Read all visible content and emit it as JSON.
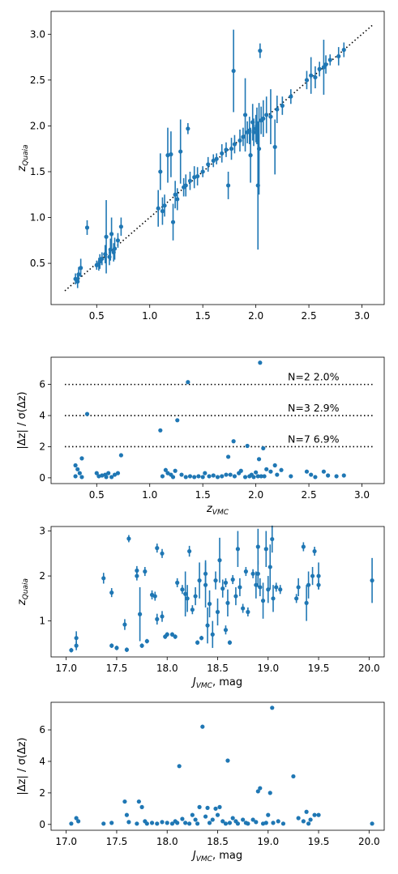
{
  "chart_data": [
    {
      "type": "scatter",
      "xlabel": "",
      "ylabel": "z_Quaia",
      "xlim": [
        0.07,
        3.21
      ],
      "ylim": [
        0.05,
        3.25
      ],
      "xticks": [
        "0.5",
        "1.0",
        "1.5",
        "2.0",
        "2.5",
        "3.0"
      ],
      "yticks": [
        "0.5",
        "1.0",
        "1.5",
        "2.0",
        "2.5",
        "3.0"
      ],
      "reference_line": {
        "style": "dotted",
        "color": "#000000",
        "x": [
          0.2,
          3.1
        ],
        "y": [
          0.2,
          3.1
        ]
      },
      "color": "#1f77b4",
      "points": [
        [
          0.3,
          0.33,
          0.06
        ],
        [
          0.32,
          0.3,
          0.07
        ],
        [
          0.33,
          0.38,
          0.08
        ],
        [
          0.35,
          0.45,
          0.1
        ],
        [
          0.41,
          0.89,
          0.08
        ],
        [
          0.5,
          0.48,
          0.05
        ],
        [
          0.52,
          0.49,
          0.07
        ],
        [
          0.53,
          0.52,
          0.08
        ],
        [
          0.55,
          0.55,
          0.07
        ],
        [
          0.58,
          0.6,
          0.1
        ],
        [
          0.59,
          0.79,
          0.4
        ],
        [
          0.62,
          0.57,
          0.09
        ],
        [
          0.63,
          0.65,
          0.12
        ],
        [
          0.64,
          0.82,
          0.18
        ],
        [
          0.66,
          0.62,
          0.1
        ],
        [
          0.67,
          0.66,
          0.12
        ],
        [
          0.7,
          0.75,
          0.08
        ],
        [
          0.73,
          0.9,
          0.1
        ],
        [
          1.08,
          1.1,
          0.2
        ],
        [
          1.1,
          1.5,
          0.2
        ],
        [
          1.12,
          1.07,
          0.15
        ],
        [
          1.14,
          1.13,
          0.12
        ],
        [
          1.17,
          1.68,
          0.3
        ],
        [
          1.2,
          1.69,
          0.25
        ],
        [
          1.22,
          0.95,
          0.2
        ],
        [
          1.24,
          1.25,
          0.15
        ],
        [
          1.26,
          1.2,
          0.12
        ],
        [
          1.29,
          1.72,
          0.35
        ],
        [
          1.32,
          1.33,
          0.1
        ],
        [
          1.34,
          1.35,
          0.12
        ],
        [
          1.36,
          1.97,
          0.06
        ],
        [
          1.38,
          1.4,
          0.1
        ],
        [
          1.42,
          1.44,
          0.12
        ],
        [
          1.45,
          1.45,
          0.1
        ],
        [
          1.5,
          1.5,
          0.06
        ],
        [
          1.55,
          1.58,
          0.08
        ],
        [
          1.6,
          1.62,
          0.07
        ],
        [
          1.63,
          1.64,
          0.06
        ],
        [
          1.68,
          1.7,
          0.1
        ],
        [
          1.72,
          1.74,
          0.08
        ],
        [
          1.74,
          1.35,
          0.15
        ],
        [
          1.77,
          1.75,
          0.12
        ],
        [
          1.79,
          2.6,
          0.45
        ],
        [
          1.8,
          1.8,
          0.1
        ],
        [
          1.85,
          1.84,
          0.12
        ],
        [
          1.88,
          1.88,
          0.1
        ],
        [
          1.9,
          2.12,
          0.4
        ],
        [
          1.92,
          1.93,
          0.12
        ],
        [
          1.94,
          1.95,
          0.15
        ],
        [
          1.95,
          1.68,
          0.3
        ],
        [
          1.97,
          2.04,
          0.2
        ],
        [
          1.98,
          1.93,
          0.15
        ],
        [
          2.0,
          1.97,
          0.15
        ],
        [
          2.01,
          2.0,
          0.2
        ],
        [
          2.02,
          1.35,
          0.7
        ],
        [
          2.03,
          1.75,
          0.5
        ],
        [
          2.04,
          2.82,
          0.08
        ],
        [
          2.05,
          2.06,
          0.15
        ],
        [
          2.07,
          2.08,
          0.2
        ],
        [
          2.1,
          2.12,
          0.2
        ],
        [
          2.14,
          2.1,
          0.3
        ],
        [
          2.18,
          1.77,
          0.3
        ],
        [
          2.2,
          2.18,
          0.15
        ],
        [
          2.25,
          2.22,
          0.1
        ],
        [
          2.33,
          2.32,
          0.08
        ],
        [
          2.48,
          2.5,
          0.1
        ],
        [
          2.52,
          2.55,
          0.2
        ],
        [
          2.56,
          2.53,
          0.12
        ],
        [
          2.6,
          2.62,
          0.08
        ],
        [
          2.64,
          2.64,
          0.3
        ],
        [
          2.66,
          2.67,
          0.1
        ],
        [
          2.7,
          2.72,
          0.06
        ],
        [
          2.78,
          2.76,
          0.1
        ],
        [
          2.83,
          2.83,
          0.08
        ]
      ]
    },
    {
      "type": "scatter",
      "xlabel": "z_VMC",
      "ylabel": "|Δz| / σ(Δz)",
      "xlim": [
        0.07,
        3.21
      ],
      "ylim": [
        -0.37,
        7.75
      ],
      "xticks": [
        "0.5",
        "1.0",
        "1.5",
        "2.0",
        "2.5",
        "3.0"
      ],
      "yticks": [
        "0",
        "2",
        "4",
        "6"
      ],
      "thresholds": [
        {
          "y": 6,
          "label": "N=2  2.0%"
        },
        {
          "y": 4,
          "label": "N=3  2.9%"
        },
        {
          "y": 2,
          "label": "N=7  6.9%"
        }
      ],
      "color": "#1f77b4",
      "points": [
        [
          0.3,
          0.1
        ],
        [
          0.3,
          0.8
        ],
        [
          0.32,
          0.55
        ],
        [
          0.34,
          0.3
        ],
        [
          0.36,
          1.25
        ],
        [
          0.36,
          0.05
        ],
        [
          0.41,
          4.1
        ],
        [
          0.5,
          0.3
        ],
        [
          0.52,
          0.1
        ],
        [
          0.55,
          0.15
        ],
        [
          0.58,
          0.2
        ],
        [
          0.59,
          0.05
        ],
        [
          0.61,
          0.3
        ],
        [
          0.64,
          0.05
        ],
        [
          0.67,
          0.2
        ],
        [
          0.7,
          0.3
        ],
        [
          0.73,
          1.45
        ],
        [
          1.1,
          3.05
        ],
        [
          1.12,
          0.1
        ],
        [
          1.15,
          0.5
        ],
        [
          1.17,
          0.3
        ],
        [
          1.2,
          0.2
        ],
        [
          1.22,
          0.05
        ],
        [
          1.24,
          0.45
        ],
        [
          1.26,
          3.7
        ],
        [
          1.3,
          0.2
        ],
        [
          1.34,
          0.05
        ],
        [
          1.36,
          6.15
        ],
        [
          1.38,
          0.1
        ],
        [
          1.42,
          0.05
        ],
        [
          1.46,
          0.1
        ],
        [
          1.5,
          0.05
        ],
        [
          1.52,
          0.3
        ],
        [
          1.56,
          0.1
        ],
        [
          1.6,
          0.15
        ],
        [
          1.64,
          0.05
        ],
        [
          1.68,
          0.1
        ],
        [
          1.72,
          0.2
        ],
        [
          1.74,
          1.35
        ],
        [
          1.76,
          0.2
        ],
        [
          1.79,
          2.35
        ],
        [
          1.8,
          0.1
        ],
        [
          1.84,
          0.3
        ],
        [
          1.86,
          0.45
        ],
        [
          1.9,
          0.05
        ],
        [
          1.92,
          2.05
        ],
        [
          1.94,
          0.1
        ],
        [
          1.96,
          0.2
        ],
        [
          1.98,
          0.05
        ],
        [
          2.0,
          0.35
        ],
        [
          2.02,
          0.1
        ],
        [
          2.03,
          1.2
        ],
        [
          2.04,
          7.4
        ],
        [
          2.05,
          0.1
        ],
        [
          2.07,
          1.9
        ],
        [
          2.08,
          0.1
        ],
        [
          2.1,
          0.55
        ],
        [
          2.14,
          0.4
        ],
        [
          2.18,
          0.8
        ],
        [
          2.2,
          0.2
        ],
        [
          2.24,
          0.5
        ],
        [
          2.33,
          0.1
        ],
        [
          2.48,
          0.4
        ],
        [
          2.52,
          0.2
        ],
        [
          2.56,
          0.05
        ],
        [
          2.64,
          0.4
        ],
        [
          2.68,
          0.15
        ],
        [
          2.76,
          0.1
        ],
        [
          2.83,
          0.15
        ]
      ]
    },
    {
      "type": "scatter",
      "xlabel": "J_VMC, mag",
      "ylabel": "z_Quaia",
      "xlim": [
        16.85,
        20.15
      ],
      "ylim": [
        0.2,
        3.1
      ],
      "xticks": [
        "17.0",
        "17.5",
        "18.0",
        "18.5",
        "19.0",
        "19.5",
        "20.0"
      ],
      "yticks": [
        "1",
        "2",
        "3"
      ],
      "color": "#1f77b4",
      "points": [
        [
          17.05,
          0.35,
          0.05
        ],
        [
          17.1,
          0.45,
          0.1
        ],
        [
          17.1,
          0.62,
          0.15
        ],
        [
          17.37,
          1.95,
          0.12
        ],
        [
          17.45,
          0.45,
          0.05
        ],
        [
          17.45,
          1.63,
          0.1
        ],
        [
          17.5,
          0.4,
          0.05
        ],
        [
          17.58,
          0.92,
          0.12
        ],
        [
          17.6,
          0.36,
          0.05
        ],
        [
          17.62,
          2.83,
          0.08
        ],
        [
          17.7,
          2.0,
          0.1
        ],
        [
          17.7,
          2.12,
          0.1
        ],
        [
          17.73,
          1.15,
          0.6
        ],
        [
          17.75,
          0.45,
          0.05
        ],
        [
          17.78,
          2.1,
          0.1
        ],
        [
          17.8,
          0.55,
          0.05
        ],
        [
          17.85,
          1.58,
          0.1
        ],
        [
          17.88,
          1.55,
          0.1
        ],
        [
          17.9,
          1.04,
          0.12
        ],
        [
          17.9,
          2.62,
          0.1
        ],
        [
          17.95,
          1.1,
          0.12
        ],
        [
          17.95,
          2.5,
          0.1
        ],
        [
          17.98,
          0.65,
          0.05
        ],
        [
          18.0,
          0.7,
          0.05
        ],
        [
          18.05,
          0.7,
          0.05
        ],
        [
          18.08,
          0.65,
          0.05
        ],
        [
          18.1,
          1.85,
          0.1
        ],
        [
          18.15,
          1.7,
          0.1
        ],
        [
          18.18,
          1.6,
          0.5
        ],
        [
          18.2,
          1.5,
          0.3
        ],
        [
          18.22,
          2.55,
          0.12
        ],
        [
          18.25,
          1.25,
          0.1
        ],
        [
          18.28,
          1.55,
          0.2
        ],
        [
          18.3,
          0.52,
          0.05
        ],
        [
          18.32,
          1.9,
          0.4
        ],
        [
          18.34,
          0.62,
          0.05
        ],
        [
          18.38,
          1.8,
          0.5
        ],
        [
          18.38,
          2.05,
          0.3
        ],
        [
          18.4,
          0.9,
          0.4
        ],
        [
          18.42,
          1.38,
          0.3
        ],
        [
          18.45,
          0.7,
          0.3
        ],
        [
          18.48,
          1.9,
          0.2
        ],
        [
          18.5,
          1.2,
          0.3
        ],
        [
          18.52,
          2.35,
          0.5
        ],
        [
          18.55,
          1.72,
          0.2
        ],
        [
          18.58,
          0.8,
          0.1
        ],
        [
          18.58,
          1.85,
          0.1
        ],
        [
          18.6,
          1.4,
          0.3
        ],
        [
          18.62,
          0.52,
          0.05
        ],
        [
          18.65,
          1.92,
          0.1
        ],
        [
          18.68,
          1.55,
          0.2
        ],
        [
          18.7,
          2.6,
          0.4
        ],
        [
          18.72,
          1.75,
          0.2
        ],
        [
          18.75,
          1.28,
          0.1
        ],
        [
          18.78,
          2.1,
          0.1
        ],
        [
          18.8,
          1.2,
          0.1
        ],
        [
          18.85,
          2.05,
          0.1
        ],
        [
          18.88,
          1.8,
          0.3
        ],
        [
          18.9,
          2.65,
          0.4
        ],
        [
          18.9,
          2.05,
          0.3
        ],
        [
          18.92,
          1.75,
          0.2
        ],
        [
          18.95,
          1.45,
          0.4
        ],
        [
          18.98,
          2.6,
          0.4
        ],
        [
          19.0,
          1.7,
          0.3
        ],
        [
          19.02,
          2.2,
          0.5
        ],
        [
          19.04,
          2.82,
          0.3
        ],
        [
          19.05,
          1.5,
          0.3
        ],
        [
          19.08,
          1.75,
          0.1
        ],
        [
          19.12,
          1.7,
          0.1
        ],
        [
          19.28,
          1.5,
          0.1
        ],
        [
          19.3,
          1.75,
          0.2
        ],
        [
          19.35,
          2.65,
          0.1
        ],
        [
          19.38,
          1.4,
          0.4
        ],
        [
          19.4,
          1.8,
          0.3
        ],
        [
          19.44,
          2.0,
          0.2
        ],
        [
          19.46,
          2.55,
          0.1
        ],
        [
          19.5,
          1.8,
          0.1
        ],
        [
          19.5,
          2.0,
          0.3
        ],
        [
          20.03,
          1.9,
          0.5
        ]
      ]
    },
    {
      "type": "scatter",
      "xlabel": "J_VMC, mag",
      "ylabel": "|Δz| / σ(Δz)",
      "xlim": [
        16.85,
        20.15
      ],
      "ylim": [
        -0.37,
        7.75
      ],
      "xticks": [
        "17.0",
        "17.5",
        "18.0",
        "18.5",
        "19.0",
        "19.5",
        "20.0"
      ],
      "yticks": [
        "0",
        "2",
        "4",
        "6"
      ],
      "color": "#1f77b4",
      "points": [
        [
          17.05,
          0.05
        ],
        [
          17.1,
          0.4
        ],
        [
          17.12,
          0.2
        ],
        [
          17.37,
          0.05
        ],
        [
          17.45,
          0.1
        ],
        [
          17.58,
          1.45
        ],
        [
          17.6,
          0.6
        ],
        [
          17.62,
          0.15
        ],
        [
          17.7,
          0.05
        ],
        [
          17.72,
          1.45
        ],
        [
          17.75,
          1.1
        ],
        [
          17.78,
          0.2
        ],
        [
          17.8,
          0.05
        ],
        [
          17.85,
          0.1
        ],
        [
          17.9,
          0.05
        ],
        [
          17.95,
          0.15
        ],
        [
          18.0,
          0.1
        ],
        [
          18.05,
          0.05
        ],
        [
          18.08,
          0.2
        ],
        [
          18.1,
          0.1
        ],
        [
          18.12,
          3.7
        ],
        [
          18.15,
          0.35
        ],
        [
          18.18,
          0.1
        ],
        [
          18.22,
          0.05
        ],
        [
          18.25,
          0.6
        ],
        [
          18.28,
          0.3
        ],
        [
          18.3,
          0.05
        ],
        [
          18.32,
          1.1
        ],
        [
          18.35,
          6.2
        ],
        [
          18.38,
          0.5
        ],
        [
          18.4,
          1.05
        ],
        [
          18.42,
          0.1
        ],
        [
          18.45,
          0.3
        ],
        [
          18.48,
          1.0
        ],
        [
          18.5,
          0.6
        ],
        [
          18.52,
          1.1
        ],
        [
          18.55,
          0.2
        ],
        [
          18.58,
          0.05
        ],
        [
          18.6,
          4.05
        ],
        [
          18.62,
          0.1
        ],
        [
          18.65,
          0.4
        ],
        [
          18.68,
          0.2
        ],
        [
          18.7,
          0.05
        ],
        [
          18.75,
          0.3
        ],
        [
          18.78,
          0.1
        ],
        [
          18.8,
          0.05
        ],
        [
          18.85,
          0.3
        ],
        [
          18.88,
          0.15
        ],
        [
          18.9,
          2.1
        ],
        [
          18.92,
          2.3
        ],
        [
          18.95,
          0.05
        ],
        [
          18.98,
          0.1
        ],
        [
          19.0,
          0.6
        ],
        [
          19.02,
          2.0
        ],
        [
          19.04,
          7.4
        ],
        [
          19.05,
          0.1
        ],
        [
          19.1,
          0.2
        ],
        [
          19.15,
          0.05
        ],
        [
          19.25,
          3.05
        ],
        [
          19.3,
          0.4
        ],
        [
          19.35,
          0.2
        ],
        [
          19.38,
          0.8
        ],
        [
          19.4,
          0.05
        ],
        [
          19.42,
          0.3
        ],
        [
          19.46,
          0.6
        ],
        [
          19.5,
          0.6
        ],
        [
          20.03,
          0.05
        ]
      ]
    }
  ]
}
